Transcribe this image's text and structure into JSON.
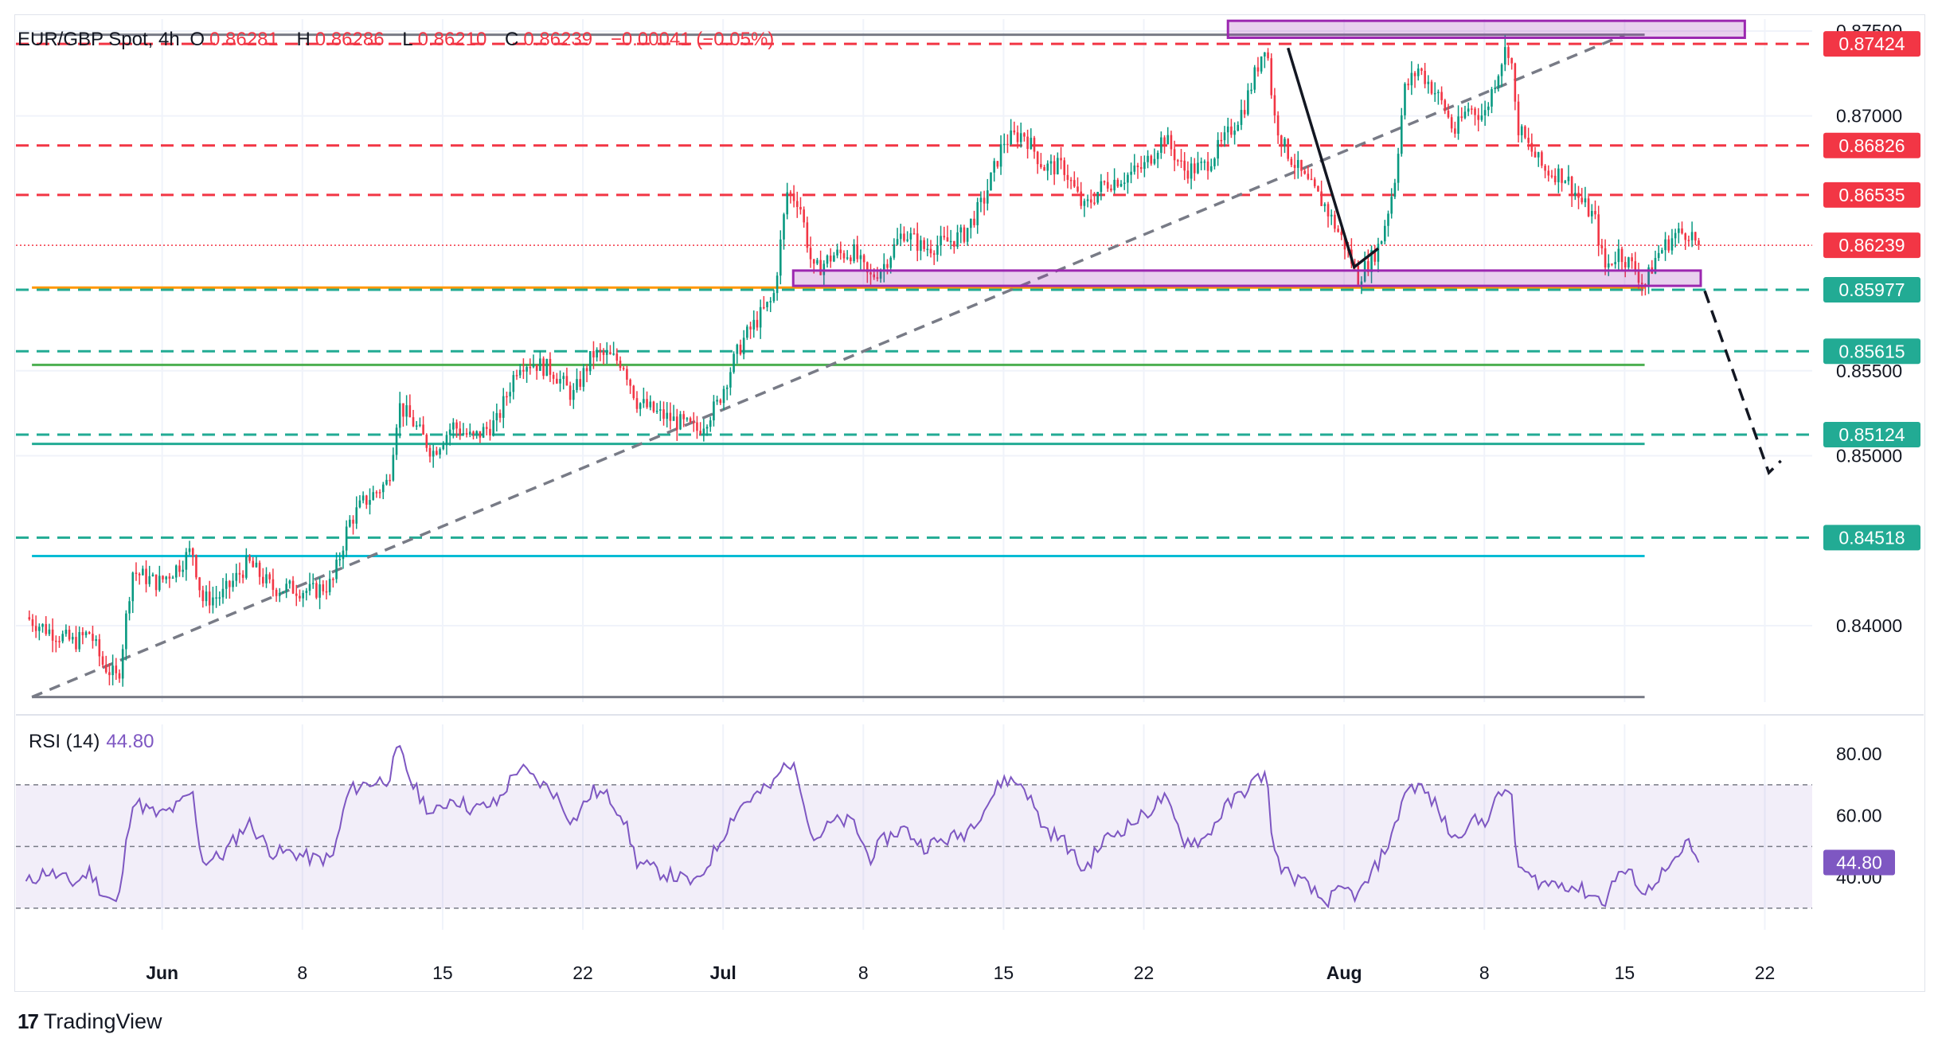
{
  "legend": {
    "symbol": "EUR/GBP Spot, 4h",
    "o_key": "O",
    "o_val": "0.86281",
    "h_key": "H",
    "h_val": "0.86286",
    "l_key": "L",
    "l_val": "0.86210",
    "c_key": "C",
    "c_val": "0.86239",
    "change": "−0.00041 (−0.05%)"
  },
  "rsi_legend": {
    "label": "RSI (14)",
    "value": "44.80"
  },
  "brand": {
    "name": "TradingView"
  },
  "colors": {
    "up": "#089981",
    "down": "#f23645",
    "rsi": "#7e57c2",
    "red_line": "#f23645",
    "teal_line": "#22ab94",
    "orange": "#ff9800",
    "green": "#4caf50",
    "cyan": "#00bcd4",
    "box": "#9c27b0",
    "box_fill": "rgba(156,39,176,0.22)",
    "gray": "#787b86"
  },
  "chart_data": [
    {
      "type": "candlestick",
      "title": "EUR/GBP Spot, 4h",
      "ylim": [
        0.8355,
        0.8757
      ],
      "y_ticks": [
        0.875,
        0.87,
        0.855,
        0.85,
        0.84
      ],
      "y_tick_labels": [
        "0.87500",
        "0.87000",
        "0.85500",
        "0.85000",
        "0.84000"
      ],
      "x_ticks": [
        {
          "day": 4,
          "label": "Jun"
        },
        {
          "day": 11,
          "label": "8"
        },
        {
          "day": 18,
          "label": "15"
        },
        {
          "day": 25,
          "label": "22"
        },
        {
          "day": 32,
          "label": "Jul"
        },
        {
          "day": 39,
          "label": "8"
        },
        {
          "day": 46,
          "label": "15"
        },
        {
          "day": 53,
          "label": "22"
        },
        {
          "day": 63,
          "label": "Aug"
        },
        {
          "day": 70,
          "label": "8"
        },
        {
          "day": 77,
          "label": "15"
        },
        {
          "day": 84,
          "label": "22"
        }
      ],
      "x_range_days": [
        -3.3,
        87.0
      ],
      "last_day": 76.9,
      "anchors": [
        [
          -2.8,
          0.8405
        ],
        [
          -1.8,
          0.8398
        ],
        [
          -0.4,
          0.839
        ],
        [
          0.4,
          0.8396
        ],
        [
          1.0,
          0.8378
        ],
        [
          1.8,
          0.8368
        ],
        [
          2.5,
          0.8432
        ],
        [
          3.8,
          0.8425
        ],
        [
          4.8,
          0.8435
        ],
        [
          5.5,
          0.8445
        ],
        [
          6.0,
          0.8415
        ],
        [
          7.0,
          0.8418
        ],
        [
          8.3,
          0.8437
        ],
        [
          9.5,
          0.8422
        ],
        [
          10.5,
          0.8422
        ],
        [
          11.5,
          0.842
        ],
        [
          12.5,
          0.8425
        ],
        [
          13.3,
          0.846
        ],
        [
          14.0,
          0.8472
        ],
        [
          15.3,
          0.8485
        ],
        [
          15.8,
          0.853
        ],
        [
          16.5,
          0.852
        ],
        [
          17.5,
          0.8502
        ],
        [
          18.5,
          0.8518
        ],
        [
          19.5,
          0.851
        ],
        [
          20.7,
          0.852
        ],
        [
          21.8,
          0.8555
        ],
        [
          22.5,
          0.8555
        ],
        [
          23.5,
          0.855
        ],
        [
          24.5,
          0.8535
        ],
        [
          25.5,
          0.856
        ],
        [
          26.3,
          0.8558
        ],
        [
          27.0,
          0.8555
        ],
        [
          27.7,
          0.8532
        ],
        [
          28.7,
          0.8525
        ],
        [
          29.7,
          0.852
        ],
        [
          30.7,
          0.8515
        ],
        [
          31.7,
          0.853
        ],
        [
          32.5,
          0.8555
        ],
        [
          33.0,
          0.8568
        ],
        [
          34.0,
          0.8585
        ],
        [
          34.5,
          0.8592
        ],
        [
          35.2,
          0.8655
        ],
        [
          35.8,
          0.865
        ],
        [
          36.5,
          0.8608
        ],
        [
          37.5,
          0.8618
        ],
        [
          38.5,
          0.862
        ],
        [
          39.3,
          0.8604
        ],
        [
          40.0,
          0.8612
        ],
        [
          41.0,
          0.8632
        ],
        [
          42.0,
          0.8622
        ],
        [
          43.0,
          0.8625
        ],
        [
          44.0,
          0.863
        ],
        [
          45.0,
          0.865
        ],
        [
          46.0,
          0.8685
        ],
        [
          47.0,
          0.869
        ],
        [
          48.0,
          0.867
        ],
        [
          49.0,
          0.867
        ],
        [
          50.0,
          0.8645
        ],
        [
          51.0,
          0.866
        ],
        [
          52.0,
          0.8664
        ],
        [
          53.0,
          0.867
        ],
        [
          54.0,
          0.8688
        ],
        [
          55.0,
          0.8668
        ],
        [
          56.0,
          0.867
        ],
        [
          57.0,
          0.8685
        ],
        [
          58.0,
          0.8705
        ],
        [
          58.7,
          0.873
        ],
        [
          59.1,
          0.8745
        ],
        [
          59.5,
          0.87
        ],
        [
          60.0,
          0.8682
        ],
        [
          61.0,
          0.8663
        ],
        [
          62.0,
          0.8648
        ],
        [
          63.0,
          0.8625
        ],
        [
          63.7,
          0.8605
        ],
        [
          64.3,
          0.8615
        ],
        [
          64.8,
          0.8625
        ],
        [
          65.5,
          0.866
        ],
        [
          66.0,
          0.8715
        ],
        [
          66.7,
          0.8728
        ],
        [
          67.5,
          0.8715
        ],
        [
          68.0,
          0.8705
        ],
        [
          68.5,
          0.869
        ],
        [
          69.2,
          0.8705
        ],
        [
          70.0,
          0.87
        ],
        [
          70.5,
          0.872
        ],
        [
          71.0,
          0.8738
        ],
        [
          71.3,
          0.874
        ],
        [
          71.6,
          0.8695
        ],
        [
          72.2,
          0.8682
        ],
        [
          73.0,
          0.8668
        ],
        [
          74.0,
          0.8665
        ],
        [
          74.8,
          0.865
        ],
        [
          75.5,
          0.864
        ],
        [
          76.0,
          0.861
        ],
        [
          76.7,
          0.862
        ],
        [
          77.5,
          0.861
        ],
        [
          78.0,
          0.86
        ],
        [
          78.6,
          0.8618
        ],
        [
          79.5,
          0.863
        ],
        [
          80.2,
          0.8632
        ],
        [
          80.7,
          0.8624
        ]
      ],
      "price_labels": [
        {
          "value": 0.87424,
          "text": "0.87424",
          "kind": "red"
        },
        {
          "value": 0.86826,
          "text": "0.86826",
          "kind": "red"
        },
        {
          "value": 0.86535,
          "text": "0.86535",
          "kind": "red"
        },
        {
          "value": 0.86239,
          "text": "0.86239",
          "kind": "red"
        },
        {
          "value": 0.85977,
          "text": "0.85977",
          "kind": "teal"
        },
        {
          "value": 0.85615,
          "text": "0.85615",
          "kind": "teal"
        },
        {
          "value": 0.85124,
          "text": "0.85124",
          "kind": "teal"
        },
        {
          "value": 0.84518,
          "text": "0.84518",
          "kind": "teal"
        }
      ],
      "hlines": [
        {
          "value": 0.87424,
          "style": "dashed",
          "kind": "red"
        },
        {
          "value": 0.86826,
          "style": "dashed",
          "kind": "red"
        },
        {
          "value": 0.86535,
          "style": "dashed",
          "kind": "red"
        },
        {
          "value": 0.86239,
          "style": "dotted",
          "kind": "red"
        },
        {
          "value": 0.85977,
          "style": "dashed",
          "kind": "teal"
        },
        {
          "value": 0.85615,
          "style": "dashed",
          "kind": "teal"
        },
        {
          "value": 0.85124,
          "style": "dashed",
          "kind": "teal"
        },
        {
          "value": 0.84518,
          "style": "dashed",
          "kind": "teal"
        }
      ],
      "fib_lines": [
        {
          "value": 0.87478,
          "kind": "gray",
          "x": [
            -2.5,
            78.0
          ]
        },
        {
          "value": 0.8599,
          "kind": "orange",
          "x": [
            -2.5,
            78.0
          ]
        },
        {
          "value": 0.85535,
          "kind": "green",
          "x": [
            -2.5,
            78.0
          ]
        },
        {
          "value": 0.8507,
          "kind": "teal",
          "x": [
            -2.5,
            78.0
          ]
        },
        {
          "value": 0.8441,
          "kind": "cyan",
          "x": [
            -2.5,
            78.0
          ]
        },
        {
          "value": 0.8358,
          "kind": "gray",
          "x": [
            -2.5,
            78.0
          ]
        }
      ],
      "trendline": {
        "from": [
          -2.5,
          0.8358
        ],
        "to": [
          77.0,
          0.87478
        ]
      },
      "boxes": [
        {
          "x": [
            57.2,
            83.0
          ],
          "y": [
            0.8746,
            0.8756
          ]
        },
        {
          "x": [
            35.5,
            80.8
          ],
          "y": [
            0.86,
            0.8609
          ]
        }
      ],
      "arrows": [
        {
          "points": [
            [
              60.2,
              0.874
            ],
            [
              63.5,
              0.8611
            ],
            [
              64.7,
              0.8622
            ]
          ],
          "style": "solid"
        },
        {
          "points": [
            [
              81.0,
              0.8597
            ],
            [
              84.2,
              0.849
            ],
            [
              84.8,
              0.8497
            ]
          ],
          "style": "dashed"
        }
      ]
    },
    {
      "type": "line",
      "title": "RSI (14)",
      "ylim": [
        23,
        87
      ],
      "y_ticks": [
        80,
        60,
        40
      ],
      "y_tick_labels": [
        "80.00",
        "60.00",
        "40.00"
      ],
      "band": [
        30,
        70
      ],
      "mid": 50,
      "last_value": 44.8,
      "last_label": "44.80",
      "anchors": [
        [
          -2.8,
          38
        ],
        [
          -1.8,
          42
        ],
        [
          -0.4,
          38
        ],
        [
          0.4,
          42
        ],
        [
          1.0,
          35
        ],
        [
          1.8,
          31
        ],
        [
          2.5,
          65
        ],
        [
          3.8,
          60
        ],
        [
          4.8,
          63
        ],
        [
          5.5,
          68
        ],
        [
          6.0,
          45
        ],
        [
          7.0,
          47
        ],
        [
          8.3,
          58
        ],
        [
          9.5,
          48
        ],
        [
          10.5,
          48
        ],
        [
          11.5,
          46
        ],
        [
          12.5,
          46
        ],
        [
          13.3,
          68
        ],
        [
          14.0,
          70
        ],
        [
          15.3,
          72
        ],
        [
          15.8,
          82
        ],
        [
          16.5,
          70
        ],
        [
          17.5,
          60
        ],
        [
          18.5,
          66
        ],
        [
          19.5,
          62
        ],
        [
          20.7,
          64
        ],
        [
          21.8,
          76
        ],
        [
          22.5,
          72
        ],
        [
          23.5,
          68
        ],
        [
          24.5,
          58
        ],
        [
          25.5,
          68
        ],
        [
          26.3,
          66
        ],
        [
          27.0,
          60
        ],
        [
          27.7,
          45
        ],
        [
          28.7,
          42
        ],
        [
          29.7,
          40
        ],
        [
          30.7,
          38
        ],
        [
          31.7,
          50
        ],
        [
          32.5,
          60
        ],
        [
          33.0,
          64
        ],
        [
          34.0,
          68
        ],
        [
          34.5,
          70
        ],
        [
          35.2,
          78
        ],
        [
          35.8,
          72
        ],
        [
          36.5,
          52
        ],
        [
          37.5,
          58
        ],
        [
          38.5,
          58
        ],
        [
          39.3,
          46
        ],
        [
          40.0,
          52
        ],
        [
          41.0,
          56
        ],
        [
          42.0,
          50
        ],
        [
          43.0,
          52
        ],
        [
          44.0,
          54
        ],
        [
          45.0,
          62
        ],
        [
          46.0,
          72
        ],
        [
          47.0,
          70
        ],
        [
          48.0,
          56
        ],
        [
          49.0,
          52
        ],
        [
          50.0,
          42
        ],
        [
          51.0,
          52
        ],
        [
          52.0,
          56
        ],
        [
          53.0,
          60
        ],
        [
          54.0,
          66
        ],
        [
          55.0,
          52
        ],
        [
          56.0,
          52
        ],
        [
          57.0,
          62
        ],
        [
          58.0,
          68
        ],
        [
          58.7,
          72
        ],
        [
          59.1,
          74
        ],
        [
          59.5,
          48
        ],
        [
          60.0,
          42
        ],
        [
          61.0,
          38
        ],
        [
          62.0,
          32
        ],
        [
          63.0,
          36
        ],
        [
          63.7,
          34
        ],
        [
          64.3,
          40
        ],
        [
          64.8,
          46
        ],
        [
          65.5,
          55
        ],
        [
          66.0,
          68
        ],
        [
          66.7,
          70
        ],
        [
          67.5,
          64
        ],
        [
          68.0,
          58
        ],
        [
          68.5,
          52
        ],
        [
          69.2,
          58
        ],
        [
          70.0,
          58
        ],
        [
          70.5,
          64
        ],
        [
          71.0,
          68
        ],
        [
          71.3,
          70
        ],
        [
          71.6,
          45
        ],
        [
          72.2,
          40
        ],
        [
          73.0,
          38
        ],
        [
          74.0,
          38
        ],
        [
          74.8,
          36
        ],
        [
          75.5,
          34
        ],
        [
          76.0,
          32
        ],
        [
          76.7,
          42
        ],
        [
          77.5,
          40
        ],
        [
          78.0,
          34
        ],
        [
          78.6,
          40
        ],
        [
          79.5,
          44
        ],
        [
          80.2,
          52
        ],
        [
          80.7,
          44.8
        ]
      ]
    }
  ]
}
